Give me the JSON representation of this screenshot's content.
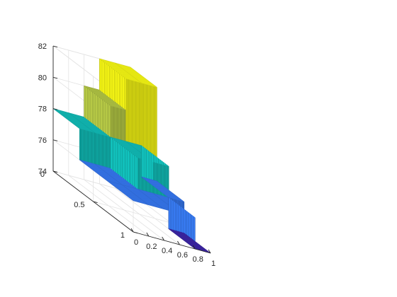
{
  "chart_data": {
    "type": "surface-3d",
    "title": "",
    "xlabel": "",
    "ylabel": "",
    "zlabel": "",
    "x_ticks": [
      "0",
      "0.2",
      "0.4",
      "0.6",
      "0.8",
      "1"
    ],
    "y_ticks": [
      "0",
      "0.5",
      "1"
    ],
    "z_ticks": [
      "74",
      "76",
      "78",
      "80",
      "82"
    ],
    "xlim": [
      0,
      1
    ],
    "ylim": [
      0,
      1
    ],
    "zlim": [
      74,
      82
    ],
    "grid": true,
    "colormap": "parula",
    "x_bins": [
      [
        0,
        0.2
      ],
      [
        0.2,
        0.4
      ],
      [
        0.4,
        0.6
      ],
      [
        0.6,
        0.8
      ],
      [
        0.8,
        1.0
      ]
    ],
    "y_bins": [
      [
        0,
        0.33
      ],
      [
        0.33,
        0.67
      ],
      [
        0.67,
        1.0
      ]
    ],
    "z_values": [
      [
        78,
        78,
        80,
        82,
        82
      ],
      [
        76,
        76,
        78,
        78,
        76
      ],
      [
        76,
        76,
        76,
        76,
        74
      ]
    ],
    "z_values_note_rows": "rows follow y bins (y=0 to y=1)",
    "front_left_cell_value": 74
  }
}
